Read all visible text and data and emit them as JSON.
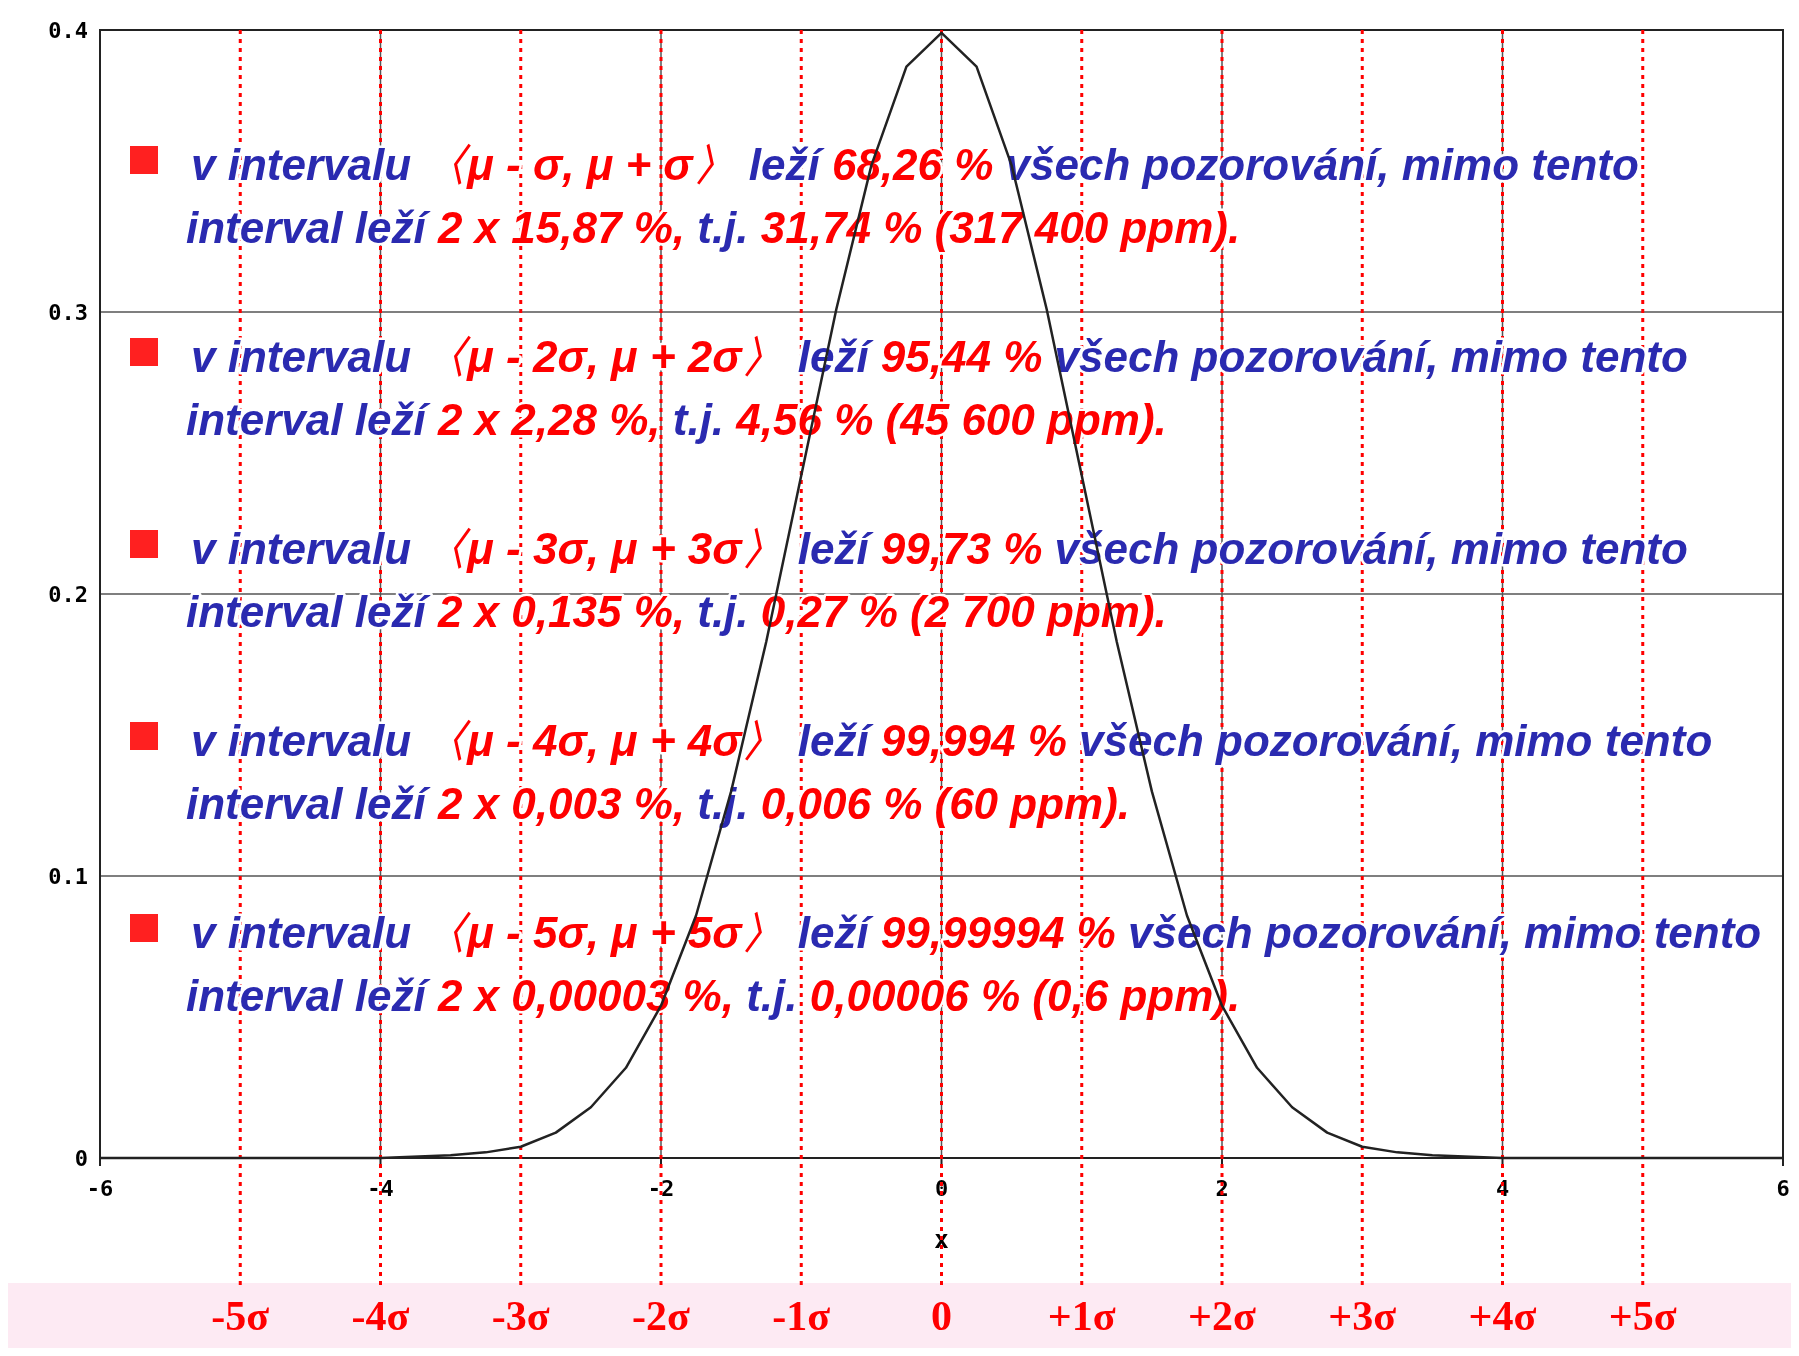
{
  "chart_data": {
    "type": "line",
    "xlabel": "x",
    "x": [
      -6,
      -5.5,
      -5,
      -4.5,
      -4,
      -3.5,
      -3.25,
      -3,
      -2.75,
      -2.5,
      -2.25,
      -2,
      -1.75,
      -1.5,
      -1.25,
      -1,
      -0.75,
      -0.5,
      -0.25,
      0,
      0.25,
      0.5,
      0.75,
      1,
      1.25,
      1.5,
      1.75,
      2,
      2.25,
      2.5,
      2.75,
      3,
      3.25,
      3.5,
      4,
      4.5,
      5,
      5.5,
      6
    ],
    "series": [
      {
        "color": "#222222",
        "values": [
          0,
          0,
          0,
          0,
          0,
          0.001,
          0.002,
          0.004,
          0.009,
          0.018,
          0.032,
          0.054,
          0.086,
          0.13,
          0.183,
          0.242,
          0.301,
          0.352,
          0.387,
          0.399,
          0.387,
          0.352,
          0.301,
          0.242,
          0.183,
          0.13,
          0.086,
          0.054,
          0.032,
          0.018,
          0.009,
          0.004,
          0.002,
          0.001,
          0,
          0,
          0,
          0,
          0
        ]
      }
    ],
    "xlim": [
      -6,
      6
    ],
    "ylim": [
      0,
      0.4
    ],
    "xticks": [
      -6,
      -4,
      -2,
      0,
      2,
      4,
      6
    ],
    "yticks": [
      0,
      0.1,
      0.2,
      0.3,
      0.4
    ],
    "grid": true,
    "marker": "none",
    "line_style": "solid",
    "ref_lines": [
      {
        "axis": "x",
        "value": -5,
        "label": "-5σ",
        "color": "#ff0000",
        "line_style": "dotted"
      },
      {
        "axis": "x",
        "value": -4,
        "label": "-4σ",
        "color": "#ff0000",
        "line_style": "dotted"
      },
      {
        "axis": "x",
        "value": -3,
        "label": "-3σ",
        "color": "#ff0000",
        "line_style": "dotted"
      },
      {
        "axis": "x",
        "value": -2,
        "label": "-2σ",
        "color": "#ff0000",
        "line_style": "dotted"
      },
      {
        "axis": "x",
        "value": -1,
        "label": "-1σ",
        "color": "#ff0000",
        "line_style": "dotted"
      },
      {
        "axis": "x",
        "value": 0,
        "label": "0",
        "color": "#ff0000",
        "line_style": "dotted"
      },
      {
        "axis": "x",
        "value": 1,
        "label": "+1σ",
        "color": "#ff0000",
        "line_style": "dotted"
      },
      {
        "axis": "x",
        "value": 2,
        "label": "+2σ",
        "color": "#ff0000",
        "line_style": "dotted"
      },
      {
        "axis": "x",
        "value": 3,
        "label": "+3σ",
        "color": "#ff0000",
        "line_style": "dotted"
      },
      {
        "axis": "x",
        "value": 4,
        "label": "+4σ",
        "color": "#ff0000",
        "line_style": "dotted"
      },
      {
        "axis": "x",
        "value": 5,
        "label": "+5σ",
        "color": "#ff0000",
        "line_style": "dotted"
      }
    ],
    "annotations": [
      "v intervalu 〈μ - σ, μ + σ〉 leží 68,26 % všech pozorování, mimo tento interval leží 2 x 15,87 %, t.j. 31,74 % (317 400 ppm).",
      "v intervalu 〈μ - 2σ, μ + 2σ〉 leží 95,44 % všech pozorování, mimo tento interval leží 2 x 2,28 %, t.j. 4,56 % (45 600 ppm).",
      "v intervalu 〈μ - 3σ, μ + 3σ〉 leží 99,73 % všech pozorování, mimo tento interval leží 2 x 0,135 %, t.j. 0,27 % (2 700 ppm).",
      "v intervalu 〈μ - 4σ, μ + 4σ〉 leží 99,994 % všech pozorování, mimo tento interval leží 2 x 0,003 %, t.j. 0,006 % (60 ppm).",
      "v intervalu 〈μ - 5σ, μ + 5σ〉 leží 99,99994 % všech pozorování, mimo tento interval leží 2 x 0,00003 %, t.j. 0,00006 % (0,6 ppm)."
    ]
  }
}
